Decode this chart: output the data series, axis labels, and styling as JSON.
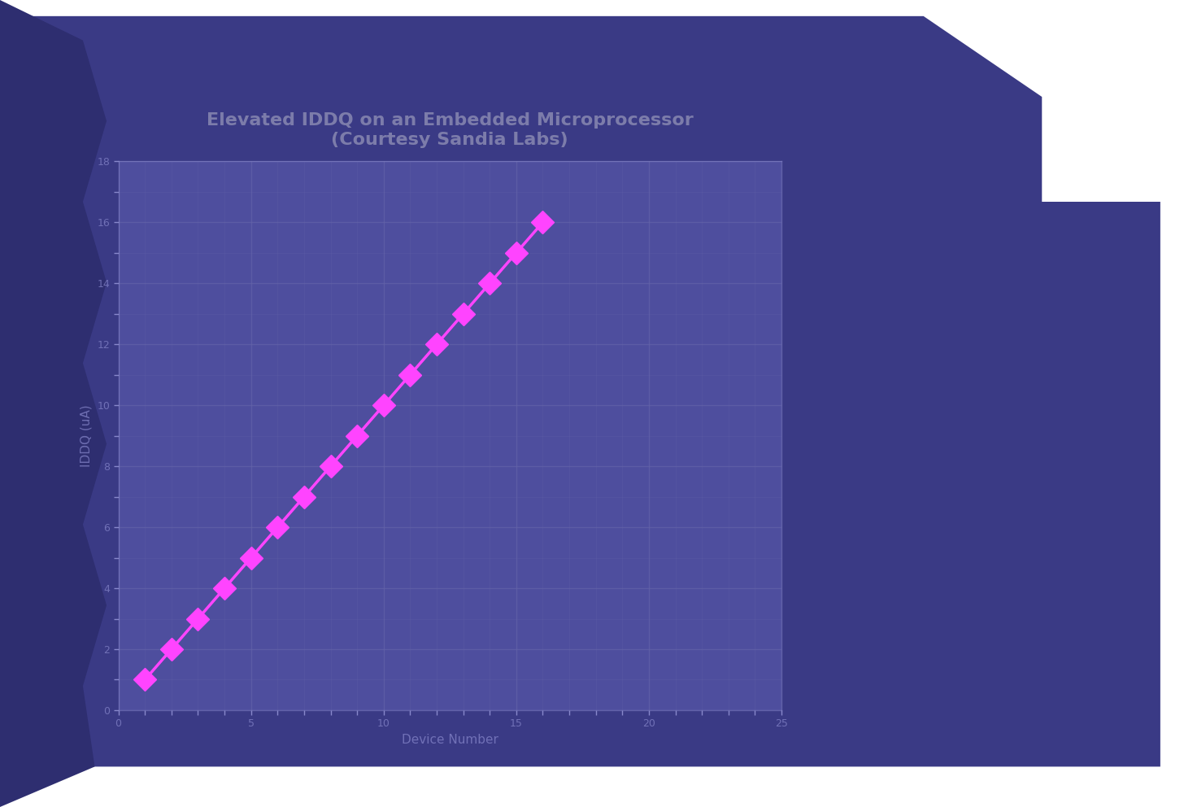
{
  "title": "Elevated IDDQ on an Embedded Microprocessor\n(Courtesy Sandia Labs)",
  "xlabel": "Device Number",
  "ylabel": "IDDQ (uA)",
  "bg_color": "#3d3d8a",
  "plot_bg_color": "#4e4e9e",
  "grid_color": "#6666aa",
  "line_color": "#ff44ff",
  "text_color": "#8888cc",
  "title_color": "#9999bb",
  "outer_bg": "#3a3a85",
  "x_values": [
    1,
    2,
    3,
    4,
    5,
    6,
    7,
    8,
    9,
    10,
    11,
    12,
    13,
    14,
    15,
    16
  ],
  "y_values": [
    1,
    2,
    3,
    4,
    5,
    6,
    7,
    8,
    9,
    10,
    11,
    12,
    13,
    14,
    15,
    16
  ],
  "xlim": [
    0,
    25
  ],
  "ylim": [
    0,
    18
  ],
  "xticks": [
    0,
    5,
    10,
    15,
    20,
    25
  ],
  "yticks": [
    0,
    2,
    4,
    6,
    8,
    10,
    12,
    14,
    16,
    18
  ],
  "title_fontsize": 16,
  "label_fontsize": 11,
  "tick_fontsize": 9,
  "marker_size": 14,
  "line_width": 2.5,
  "figsize": [
    14.56,
    9.92
  ],
  "dpi": 100
}
